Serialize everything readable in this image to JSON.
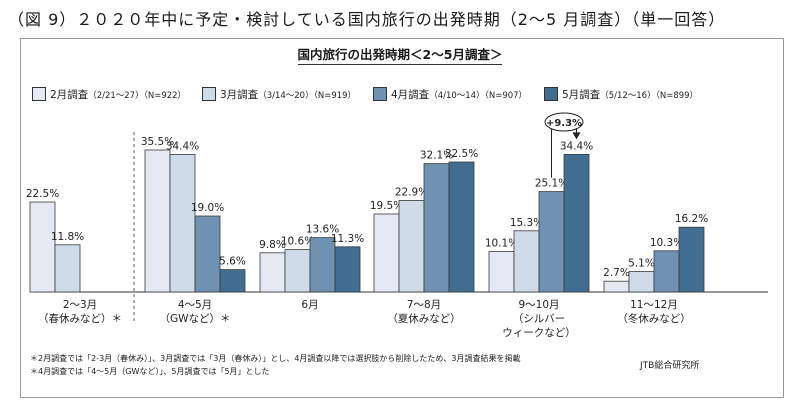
{
  "figure_title": "（図 9）２０２０年中に予定・検討している国内旅行の出発時期（2～5 月調査）（単一回答）",
  "source": "JTB総合研究所",
  "notes": [
    "＊2月調査では「2-3月（春休み）」、3月調査では「3月（春休み）」とし、4月調査以降では選択肢から削除したため、3月調査結果を掲載",
    "＊4月調査では「4～5月（GWなど）」、5月調査では「5月」とした"
  ],
  "chart_data": {
    "type": "bar",
    "title": "国内旅行の出発時期＜2～5月調査＞",
    "categories": [
      [
        "2～3月",
        "（春休みなど）＊"
      ],
      [
        "4～5月",
        "（GWなど）＊"
      ],
      [
        "6月"
      ],
      [
        "7～8月",
        "（夏休みなど）"
      ],
      [
        "9～10月",
        "（シルバー",
        "ウィークなど）"
      ],
      [
        "11～12月",
        "（冬休みなど）"
      ]
    ],
    "series": [
      {
        "name": "2月調査",
        "detail": "（2/21～27）（N=922）",
        "color": "#e6e9f3",
        "values": [
          22.5,
          35.5,
          9.8,
          19.5,
          10.1,
          2.7
        ]
      },
      {
        "name": "3月調査",
        "detail": "（3/14～20）（N=919）",
        "color": "#cfdbe9",
        "values": [
          11.8,
          34.4,
          10.6,
          22.9,
          15.3,
          5.1
        ]
      },
      {
        "name": "4月調査",
        "detail": "（4/10～14）（N=907）",
        "color": "#6f91b2",
        "values": [
          null,
          19.0,
          13.6,
          32.1,
          25.1,
          10.3
        ]
      },
      {
        "name": "5月調査",
        "detail": "（5/12～16）（N=899）",
        "color": "#416d91",
        "values": [
          null,
          5.6,
          11.3,
          32.5,
          34.4,
          16.2
        ]
      }
    ],
    "value_suffix": "%",
    "ylim": [
      0,
      40
    ],
    "grid": false,
    "legend_position": "top",
    "annotation": {
      "text": "+9.3%",
      "category_index": 4,
      "from_series": 2,
      "to_series": 3
    }
  }
}
